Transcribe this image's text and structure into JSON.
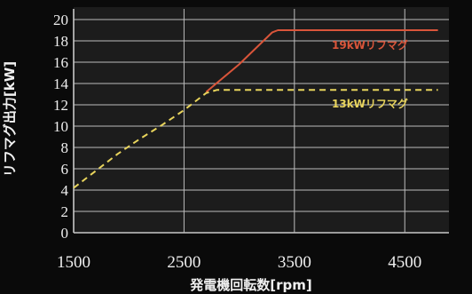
{
  "chart_data": {
    "type": "line",
    "title": "",
    "xlabel": "発電機回転数[rpm]",
    "ylabel": "リフマグ出力[kW]",
    "xlim": [
      1500,
      4900
    ],
    "ylim": [
      0,
      20
    ],
    "x_ticks": [
      1500,
      2500,
      3500,
      4500
    ],
    "y_ticks": [
      0,
      2,
      4,
      6,
      8,
      10,
      12,
      14,
      16,
      18,
      20
    ],
    "grid": true,
    "series": [
      {
        "name": "19kWリフマグ",
        "color": "#d9553a",
        "style": "solid",
        "x": [
          2700,
          3000,
          3300,
          3350,
          4800
        ],
        "y": [
          13.2,
          15.8,
          18.8,
          19.0,
          19.0
        ]
      },
      {
        "name": "13kWリフマグ",
        "color": "#e8d45c",
        "style": "dashed",
        "x": [
          1500,
          1700,
          1900,
          2100,
          2300,
          2500,
          2700,
          2800,
          4800
        ],
        "y": [
          4.2,
          5.8,
          7.4,
          8.8,
          10.1,
          11.5,
          13.1,
          13.4,
          13.4
        ]
      }
    ]
  }
}
